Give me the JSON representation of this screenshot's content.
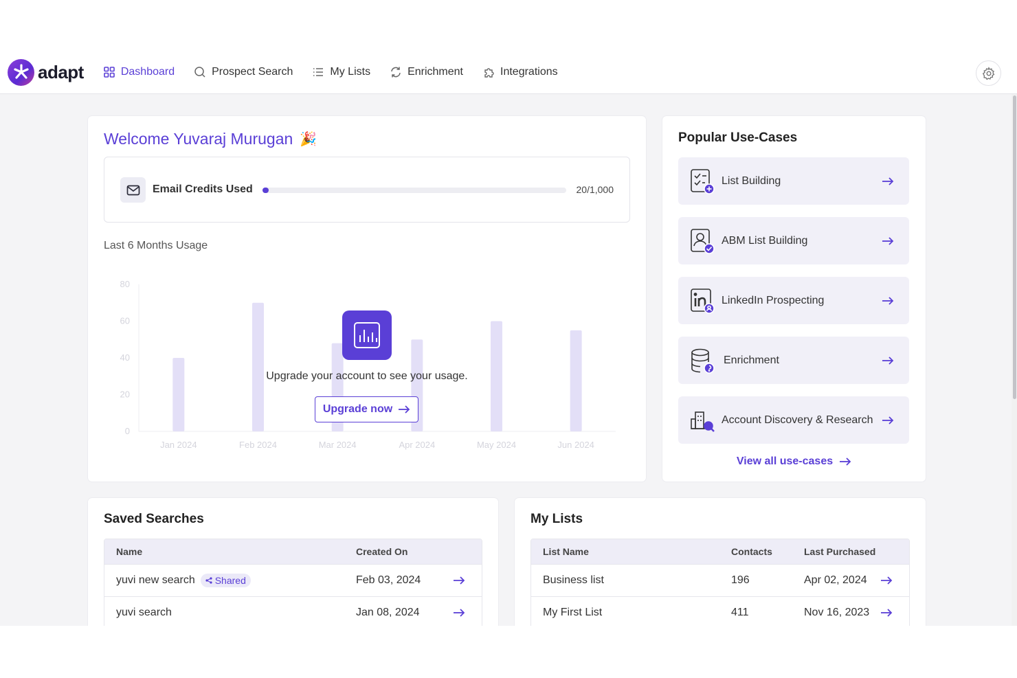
{
  "app": {
    "name": "adapt"
  },
  "nav": {
    "items": [
      {
        "label": "Dashboard",
        "icon": "grid-icon",
        "active": true
      },
      {
        "label": "Prospect Search",
        "icon": "search-icon",
        "active": false
      },
      {
        "label": "My Lists",
        "icon": "list-icon",
        "active": false
      },
      {
        "label": "Enrichment",
        "icon": "refresh-icon",
        "active": false
      },
      {
        "label": "Integrations",
        "icon": "puzzle-icon",
        "active": false
      }
    ],
    "settings_icon": "gear-icon"
  },
  "welcome": {
    "title": "Welcome Yuvaraj Murugan",
    "emoji": "🎉",
    "credits": {
      "label": "Email Credits Used",
      "used": 20,
      "total": 1000,
      "display": "20/1,000"
    },
    "usage_label": "Last 6 Months Usage",
    "overlay_text": "Upgrade your account to see your usage.",
    "upgrade_button": "Upgrade now"
  },
  "chart_data": {
    "type": "bar",
    "categories": [
      "Jan 2024",
      "Feb 2024",
      "Mar 2024",
      "Apr 2024",
      "May 2024",
      "Jun 2024"
    ],
    "values": [
      40,
      70,
      48,
      50,
      60,
      55
    ],
    "ylim": [
      0,
      80
    ],
    "yticks": [
      0,
      20,
      40,
      60,
      80
    ],
    "grid": false,
    "bar_color": "#e3dff7",
    "label_color": "#d4d4dc"
  },
  "usecases": {
    "title": "Popular Use-Cases",
    "items": [
      {
        "label": "List Building",
        "icon": "checklist-icon"
      },
      {
        "label": "ABM List Building",
        "icon": "account-badge-icon"
      },
      {
        "label": "LinkedIn Prospecting",
        "icon": "linkedin-icon"
      },
      {
        "label": "Enrichment",
        "icon": "database-icon"
      },
      {
        "label": "Account Discovery & Research",
        "icon": "building-search-icon"
      }
    ],
    "view_all": "View all use-cases"
  },
  "saved_searches": {
    "title": "Saved Searches",
    "columns": [
      "Name",
      "Created On"
    ],
    "rows": [
      {
        "name": "yuvi new search",
        "badge": "Shared",
        "created": "Feb 03, 2024"
      },
      {
        "name": "yuvi search",
        "badge": "",
        "created": "Jan 08, 2024"
      }
    ]
  },
  "my_lists": {
    "title": "My Lists",
    "columns": [
      "List Name",
      "Contacts",
      "Last Purchased"
    ],
    "rows": [
      {
        "name": "Business list",
        "contacts": "196",
        "purchased": "Apr 02, 2024"
      },
      {
        "name": "My First List",
        "contacts": "411",
        "purchased": "Nov 16, 2023"
      }
    ]
  },
  "colors": {
    "accent": "#5a3fd6",
    "background": "#f4f4f6",
    "tile": "#f1f0f8"
  }
}
